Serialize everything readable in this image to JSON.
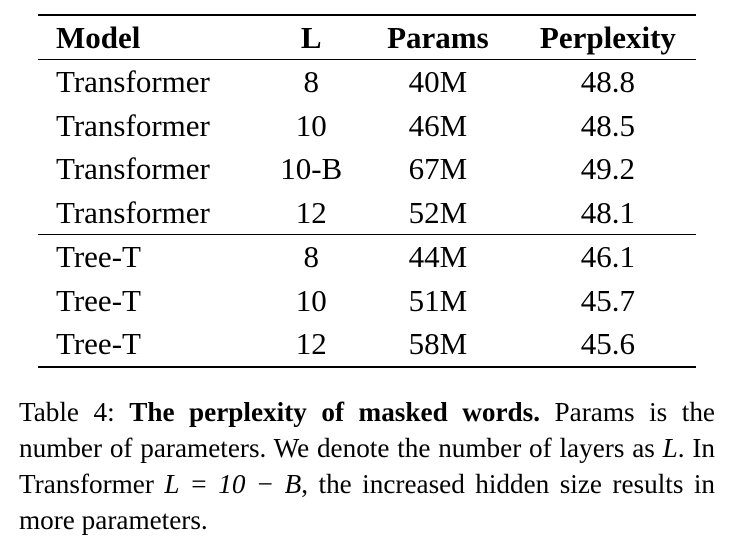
{
  "table": {
    "headers": [
      "Model",
      "L",
      "Params",
      "Perplexity"
    ],
    "groups": [
      [
        [
          "Transformer",
          "8",
          "40M",
          "48.8"
        ],
        [
          "Transformer",
          "10",
          "46M",
          "48.5"
        ],
        [
          "Transformer",
          "10-B",
          "67M",
          "49.2"
        ],
        [
          "Transformer",
          "12",
          "52M",
          "48.1"
        ]
      ],
      [
        [
          "Tree-T",
          "8",
          "44M",
          "46.1"
        ],
        [
          "Tree-T",
          "10",
          "51M",
          "45.7"
        ],
        [
          "Tree-T",
          "12",
          "58M",
          "45.6"
        ]
      ]
    ]
  },
  "caption": {
    "label": "Table 4:",
    "bold": "The perplexity of masked words.",
    "text_1": "Params is the number of parameters.  We denote the number of layers as",
    "math_1": "L",
    "text_2": ". In Transformer",
    "math_2": "L = 10 − B",
    "text_3": ", the increased hidden size results in more parameters."
  }
}
